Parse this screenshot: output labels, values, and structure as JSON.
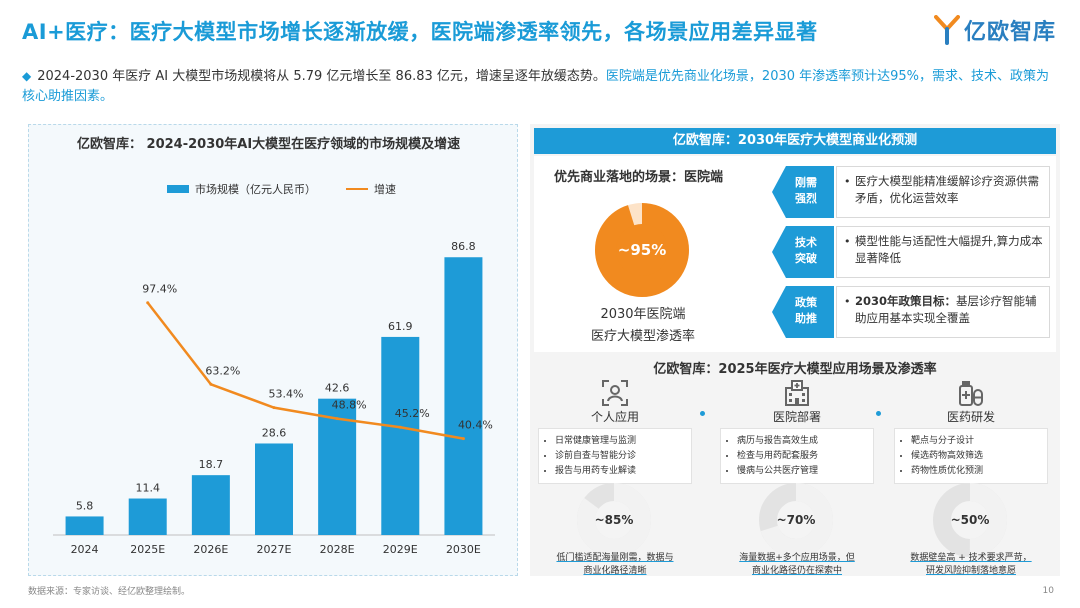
{
  "header": {
    "title": "AI+医疗：医疗大模型市场增长逐渐放缓，医院端渗透率领先，各场景应用差异显著",
    "logo_text": "亿欧智库"
  },
  "summary": {
    "part1": "2024-2030 年医疗 AI 大模型市场规模将从 5.79 亿元增长至 86.83 亿元，增速呈逐年放缓态势。",
    "part2": "医院端是优先商业化场景，2030 年渗透率预计达95%，需求、技术、政策为核心助推因素。"
  },
  "chart_data": {
    "type": "bar",
    "title": "亿欧智库：  2024-2030年AI大模型在医疗领域的市场规模及增速",
    "categories": [
      "2024",
      "2025E",
      "2026E",
      "2027E",
      "2028E",
      "2029E",
      "2030E"
    ],
    "series": [
      {
        "name": "市场规模（亿元人民币）",
        "type": "bar",
        "color": "#1e9bd7",
        "values": [
          5.8,
          11.4,
          18.7,
          28.6,
          42.6,
          61.9,
          86.8
        ],
        "labels": [
          "5.8",
          "11.4",
          "18.7",
          "28.6",
          "42.6",
          "61.9",
          "86.8"
        ]
      },
      {
        "name": "增速",
        "type": "line",
        "color": "#f18a1f",
        "values": [
          null,
          97.4,
          63.2,
          53.4,
          48.8,
          45.2,
          40.4
        ],
        "labels": [
          "",
          "97.4%",
          "63.2%",
          "53.4%",
          "48.8%",
          "45.2%",
          "40.4%"
        ]
      }
    ],
    "ylim": [
      0,
      100
    ],
    "y2lim": [
      0,
      130
    ],
    "grid": false,
    "legend_position": "top"
  },
  "forecast": {
    "header": "亿欧智库：2030年医疗大模型商业化预测",
    "scene_label": "优先商业落地的场景：医院端",
    "donut_value": 95,
    "donut_label": "~95%",
    "caption_line1": "2030年医院端",
    "caption_line2": "医疗大模型渗透率",
    "drivers": [
      {
        "tag_line1": "刚需",
        "tag_line2": "强烈",
        "bold": "",
        "text": "医疗大模型能精准缓解诊疗资源供需矛盾，优化运营效率"
      },
      {
        "tag_line1": "技术",
        "tag_line2": "突破",
        "bold": "",
        "text": "模型性能与适配性大幅提升,算力成本显著降低"
      },
      {
        "tag_line1": "政策",
        "tag_line2": "助推",
        "bold": "2030年政策目标：",
        "text": "基层诊疗智能辅助应用基本实现全覆盖"
      }
    ]
  },
  "scenarios": {
    "title": "亿欧智库：2025年医疗大模型应用场景及渗透率",
    "items": [
      {
        "name": "个人应用",
        "icon": "person-scan-icon",
        "points": [
          "日常健康管理与监测",
          "诊前自查与智能分诊",
          "报告与用药专业解读"
        ],
        "value": 85,
        "value_label": "~85%",
        "foot_line1": "低门槛适配海量刚需，数据与",
        "foot_line2": "商业化路径清晰"
      },
      {
        "name": "医院部署",
        "icon": "hospital-icon",
        "points": [
          "病历与报告高效生成",
          "检查与用药配套服务",
          "慢病与公共医疗管理"
        ],
        "value": 70,
        "value_label": "~70%",
        "foot_line1": "海量数据+多个应用场景，但",
        "foot_line2": "商业化路径仍在探索中"
      },
      {
        "name": "医药研发",
        "icon": "medicine-icon",
        "points": [
          "靶点与分子设计",
          "候选药物高效筛选",
          "药物性质优化预测"
        ],
        "value": 50,
        "value_label": "~50%",
        "foot_line1": "数据壁垒高 + 技术要求严苛，",
        "foot_line2": "研发风险抑制落地意愿"
      }
    ]
  },
  "footer": {
    "source": "数据来源：专家访谈、经亿欧整理绘制。",
    "page": "10"
  },
  "colors": {
    "accent": "#1e9bd7",
    "orange": "#f18a1f"
  }
}
